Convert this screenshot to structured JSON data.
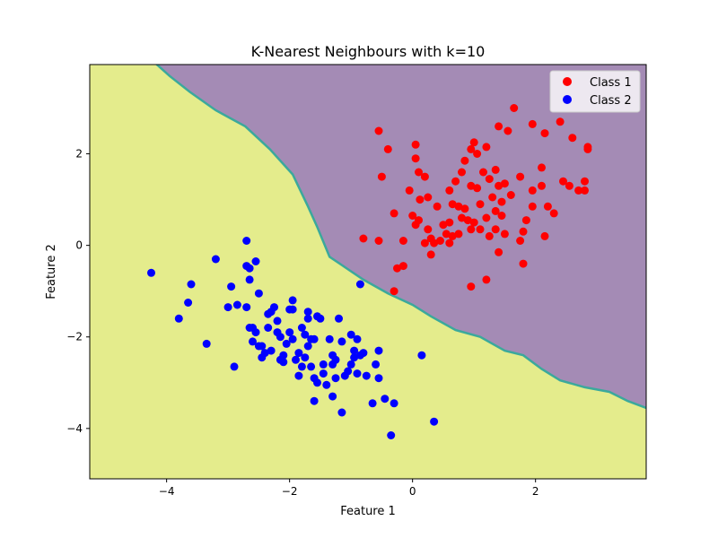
{
  "chart_data": {
    "type": "scatter",
    "title": "K-Nearest Neighbours with k=10",
    "xlabel": "Feature 1",
    "ylabel": "Feature 2",
    "xlim": [
      -5.25,
      3.8
    ],
    "ylim": [
      -5.1,
      3.95
    ],
    "xticks": [
      {
        "value": -4,
        "label": "−4"
      },
      {
        "value": -2,
        "label": "−2"
      },
      {
        "value": 0,
        "label": "0"
      },
      {
        "value": 2,
        "label": "2"
      }
    ],
    "yticks": [
      {
        "value": -4,
        "label": "−4"
      },
      {
        "value": -2,
        "label": "−2"
      },
      {
        "value": 0,
        "label": "0"
      },
      {
        "value": 2,
        "label": "2"
      }
    ],
    "grid": false,
    "legend_position": "top-right",
    "decision_regions": {
      "class_1_color": "#a48bb5",
      "class_2_color": "#e4ec8c",
      "boundary_color": "#3ba99c",
      "boundary": [
        [
          -4.2,
          4.0
        ],
        [
          -3.95,
          3.7
        ],
        [
          -3.62,
          3.35
        ],
        [
          -3.2,
          2.95
        ],
        [
          -2.72,
          2.6
        ],
        [
          -2.32,
          2.1
        ],
        [
          -1.95,
          1.55
        ],
        [
          -1.7,
          0.85
        ],
        [
          -1.55,
          0.4
        ],
        [
          -1.35,
          -0.25
        ],
        [
          -0.8,
          -0.75
        ],
        [
          -0.4,
          -1.05
        ],
        [
          0.0,
          -1.3
        ],
        [
          0.3,
          -1.55
        ],
        [
          0.7,
          -1.85
        ],
        [
          1.1,
          -2.0
        ],
        [
          1.5,
          -2.3
        ],
        [
          1.8,
          -2.4
        ],
        [
          2.1,
          -2.7
        ],
        [
          2.4,
          -2.95
        ],
        [
          2.8,
          -3.1
        ],
        [
          3.2,
          -3.2
        ],
        [
          3.5,
          -3.4
        ],
        [
          3.8,
          -3.55
        ]
      ]
    },
    "series": [
      {
        "name": "Class 1",
        "color": "#ff0000",
        "points": [
          [
            -0.55,
            2.5
          ],
          [
            -0.4,
            2.1
          ],
          [
            0.05,
            2.2
          ],
          [
            0.05,
            1.9
          ],
          [
            0.1,
            1.6
          ],
          [
            -0.5,
            1.5
          ],
          [
            0.2,
            1.5
          ],
          [
            -0.05,
            1.2
          ],
          [
            0.12,
            1.0
          ],
          [
            0.25,
            1.05
          ],
          [
            -0.3,
            0.7
          ],
          [
            0.0,
            0.65
          ],
          [
            0.1,
            0.55
          ],
          [
            0.05,
            0.45
          ],
          [
            0.25,
            0.35
          ],
          [
            0.3,
            0.15
          ],
          [
            0.2,
            0.05
          ],
          [
            0.35,
            0.05
          ],
          [
            -0.15,
            0.1
          ],
          [
            -0.55,
            0.1
          ],
          [
            -0.8,
            0.15
          ],
          [
            0.4,
            0.85
          ],
          [
            0.5,
            0.45
          ],
          [
            0.6,
            0.5
          ],
          [
            0.55,
            0.25
          ],
          [
            0.65,
            0.2
          ],
          [
            0.75,
            0.25
          ],
          [
            0.3,
            -0.2
          ],
          [
            0.6,
            1.2
          ],
          [
            0.7,
            1.4
          ],
          [
            0.8,
            1.6
          ],
          [
            0.85,
            1.85
          ],
          [
            0.95,
            2.1
          ],
          [
            1.0,
            2.25
          ],
          [
            1.05,
            2.0
          ],
          [
            1.2,
            2.15
          ],
          [
            0.65,
            0.9
          ],
          [
            0.75,
            0.85
          ],
          [
            0.85,
            0.8
          ],
          [
            0.8,
            0.6
          ],
          [
            0.9,
            0.55
          ],
          [
            0.95,
            0.35
          ],
          [
            1.0,
            0.5
          ],
          [
            1.1,
            0.9
          ],
          [
            1.15,
            1.6
          ],
          [
            1.25,
            1.45
          ],
          [
            1.35,
            1.65
          ],
          [
            1.4,
            1.3
          ],
          [
            1.5,
            1.35
          ],
          [
            1.3,
            1.05
          ],
          [
            1.45,
            0.95
          ],
          [
            1.6,
            1.1
          ],
          [
            1.55,
            2.5
          ],
          [
            1.4,
            2.6
          ],
          [
            1.65,
            3.0
          ],
          [
            0.95,
            1.3
          ],
          [
            1.05,
            1.25
          ],
          [
            1.2,
            0.6
          ],
          [
            1.35,
            0.75
          ],
          [
            1.45,
            0.65
          ],
          [
            1.5,
            0.25
          ],
          [
            1.35,
            0.35
          ],
          [
            1.25,
            0.2
          ],
          [
            1.4,
            -0.15
          ],
          [
            1.8,
            0.3
          ],
          [
            1.75,
            0.1
          ],
          [
            1.85,
            0.55
          ],
          [
            1.75,
            1.5
          ],
          [
            1.95,
            1.2
          ],
          [
            1.95,
            0.85
          ],
          [
            2.1,
            1.3
          ],
          [
            2.1,
            1.7
          ],
          [
            2.2,
            0.85
          ],
          [
            2.3,
            0.7
          ],
          [
            2.45,
            1.4
          ],
          [
            2.55,
            1.3
          ],
          [
            2.15,
            0.2
          ],
          [
            1.95,
            2.65
          ],
          [
            2.15,
            2.45
          ],
          [
            2.4,
            2.7
          ],
          [
            2.6,
            2.35
          ],
          [
            2.7,
            1.2
          ],
          [
            2.8,
            1.4
          ],
          [
            2.8,
            1.2
          ],
          [
            2.85,
            2.1
          ],
          [
            2.85,
            2.15
          ],
          [
            1.8,
            -0.4
          ],
          [
            1.2,
            -0.75
          ],
          [
            0.95,
            -0.9
          ],
          [
            -0.3,
            -1.0
          ],
          [
            -0.25,
            -0.5
          ],
          [
            -0.15,
            -0.45
          ],
          [
            0.45,
            0.1
          ],
          [
            0.6,
            0.05
          ],
          [
            1.1,
            0.35
          ]
        ]
      },
      {
        "name": "Class 2",
        "color": "#0000ff",
        "points": [
          [
            -4.25,
            -0.6
          ],
          [
            -3.8,
            -1.6
          ],
          [
            -3.6,
            -0.85
          ],
          [
            -3.65,
            -1.25
          ],
          [
            -3.35,
            -2.15
          ],
          [
            -3.2,
            -0.3
          ],
          [
            -2.9,
            -2.65
          ],
          [
            -2.85,
            -1.3
          ],
          [
            -2.95,
            -0.9
          ],
          [
            -2.65,
            -0.5
          ],
          [
            -2.7,
            -0.45
          ],
          [
            -2.55,
            -0.35
          ],
          [
            -2.65,
            -0.75
          ],
          [
            -2.7,
            0.1
          ],
          [
            -2.7,
            -1.35
          ],
          [
            -2.65,
            -1.8
          ],
          [
            -2.55,
            -1.9
          ],
          [
            -2.6,
            -2.1
          ],
          [
            -2.5,
            -2.2
          ],
          [
            -2.45,
            -2.45
          ],
          [
            -2.4,
            -2.35
          ],
          [
            -2.35,
            -1.8
          ],
          [
            -2.3,
            -1.45
          ],
          [
            -2.25,
            -1.35
          ],
          [
            -2.2,
            -1.65
          ],
          [
            -2.15,
            -2.0
          ],
          [
            -2.15,
            -2.5
          ],
          [
            -2.1,
            -2.4
          ],
          [
            -2.05,
            -2.15
          ],
          [
            -2.0,
            -1.4
          ],
          [
            -1.95,
            -1.4
          ],
          [
            -1.95,
            -2.05
          ],
          [
            -1.9,
            -2.5
          ],
          [
            -1.85,
            -2.85
          ],
          [
            -1.8,
            -2.65
          ],
          [
            -1.75,
            -1.95
          ],
          [
            -1.7,
            -1.45
          ],
          [
            -1.7,
            -1.6
          ],
          [
            -1.65,
            -2.65
          ],
          [
            -1.6,
            -2.05
          ],
          [
            -1.55,
            -1.55
          ],
          [
            -1.5,
            -1.6
          ],
          [
            -1.45,
            -2.8
          ],
          [
            -1.4,
            -3.05
          ],
          [
            -1.35,
            -2.05
          ],
          [
            -1.3,
            -2.4
          ],
          [
            -1.3,
            -3.3
          ],
          [
            -1.25,
            -2.5
          ],
          [
            -1.2,
            -1.6
          ],
          [
            -1.15,
            -2.1
          ],
          [
            -1.15,
            -3.65
          ],
          [
            -1.1,
            -2.85
          ],
          [
            -1.05,
            -2.75
          ],
          [
            -1.0,
            -1.95
          ],
          [
            -0.95,
            -2.3
          ],
          [
            -0.9,
            -2.05
          ],
          [
            -0.9,
            -2.8
          ],
          [
            -0.85,
            -0.85
          ],
          [
            -0.85,
            -2.4
          ],
          [
            -0.75,
            -2.85
          ],
          [
            -0.65,
            -3.45
          ],
          [
            -0.6,
            -2.6
          ],
          [
            -0.55,
            -2.3
          ],
          [
            -0.55,
            -2.9
          ],
          [
            -0.45,
            -3.35
          ],
          [
            -0.35,
            -4.15
          ],
          [
            -0.3,
            -3.45
          ],
          [
            0.15,
            -2.4
          ],
          [
            0.35,
            -3.85
          ],
          [
            -2.5,
            -1.05
          ],
          [
            -3.0,
            -1.35
          ],
          [
            -2.6,
            -1.8
          ],
          [
            -1.6,
            -2.9
          ],
          [
            -1.8,
            -1.8
          ],
          [
            -1.85,
            -2.35
          ],
          [
            -1.7,
            -2.2
          ],
          [
            -2.0,
            -1.9
          ],
          [
            -1.95,
            -1.2
          ],
          [
            -1.6,
            -3.4
          ],
          [
            -1.55,
            -3.0
          ],
          [
            -1.3,
            -2.6
          ],
          [
            -1.25,
            -2.9
          ],
          [
            -0.95,
            -2.45
          ],
          [
            -0.8,
            -2.35
          ],
          [
            -1.0,
            -2.6
          ],
          [
            -1.45,
            -2.6
          ],
          [
            -2.3,
            -2.3
          ],
          [
            -2.45,
            -2.2
          ],
          [
            -2.35,
            -1.5
          ],
          [
            -2.2,
            -1.9
          ],
          [
            -2.1,
            -2.55
          ],
          [
            -1.75,
            -2.45
          ],
          [
            -1.65,
            -2.05
          ]
        ]
      }
    ]
  }
}
